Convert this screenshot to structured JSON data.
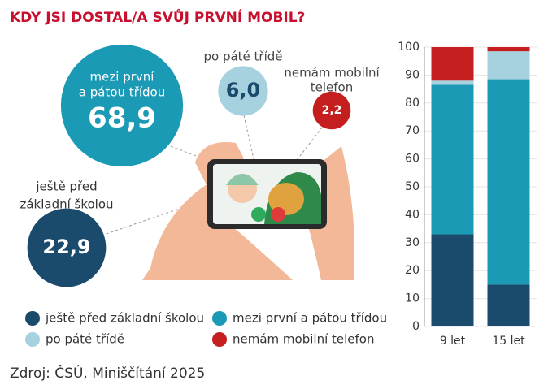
{
  "title": "KDY JSI DOSTAL/A SVŮJ PRVNÍ MOBIL?",
  "source": "Zdroj: ČSÚ, Miniščítání 2025",
  "chart_data": [
    {
      "type": "bubble",
      "categories": [
        [
          "mezi první",
          "a pátou třídou"
        ],
        [
          "po páté třídě"
        ],
        [
          "nemám mobilní",
          "telefon"
        ],
        [
          "ještě před",
          "základní školou"
        ]
      ],
      "values": [
        68.9,
        6.0,
        2.2,
        22.9
      ],
      "value_labels": [
        "68,9",
        "6,0",
        "2,2",
        "22,9"
      ],
      "colors": [
        "#1b9ab6",
        "#a6d2e0",
        "#c41e1e",
        "#1a4b6c"
      ]
    },
    {
      "type": "stacked-bar",
      "categories": [
        "9 let",
        "15 let"
      ],
      "series": [
        {
          "name": "ještě před základní školou",
          "color": "#1a4b6c",
          "values": [
            33,
            15
          ]
        },
        {
          "name": "mezi první a pátou třídou",
          "color": "#1b9ab6",
          "values": [
            53.5,
            73.5
          ]
        },
        {
          "name": "po páté třídě",
          "color": "#a6d2e0",
          "values": [
            1.5,
            10
          ]
        },
        {
          "name": "nemám mobilní telefon",
          "color": "#c41e1e",
          "values": [
            12,
            1.5
          ]
        }
      ],
      "ylim": [
        0,
        100
      ],
      "yticks": [
        0,
        10,
        20,
        30,
        40,
        50,
        60,
        70,
        80,
        90,
        100
      ],
      "grid": true
    }
  ]
}
